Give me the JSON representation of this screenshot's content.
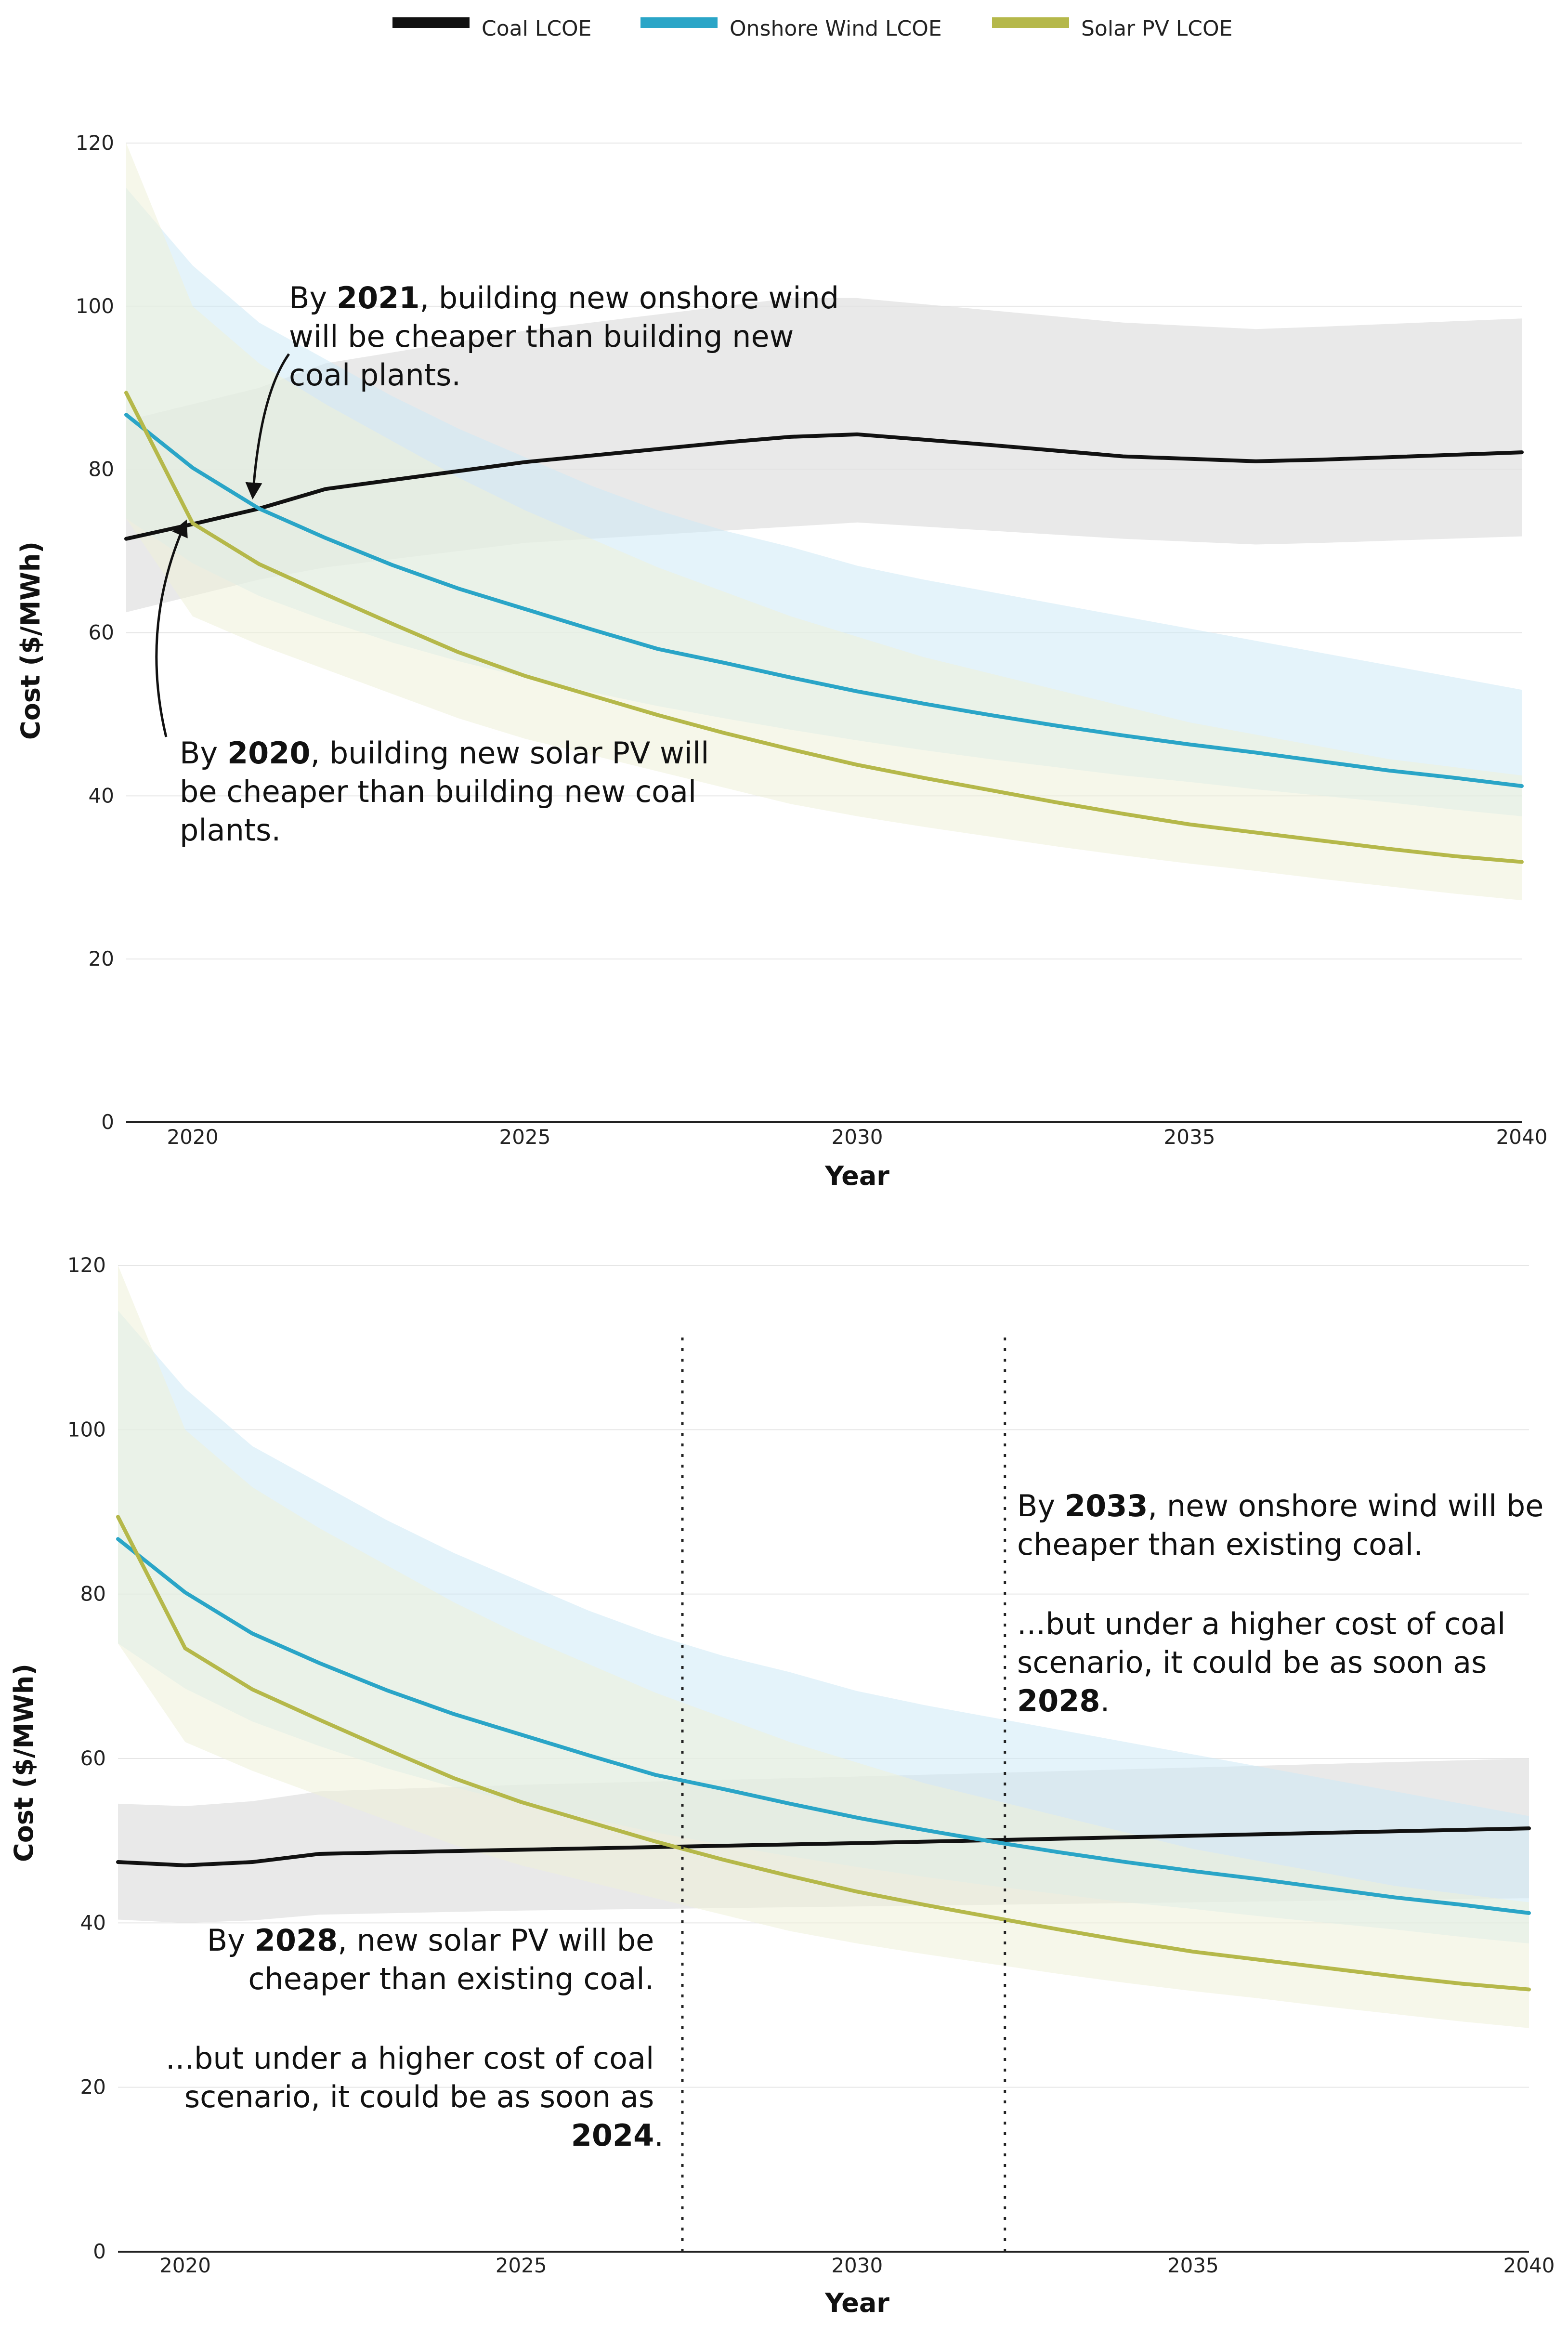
{
  "legend": {
    "coal": {
      "label": "Coal LCOE",
      "color": "#111111",
      "band_color": "#e2e2e2"
    },
    "wind": {
      "label": "Onshore Wind LCOE",
      "color": "#2aa5c7",
      "band_color": "#cde9f5"
    },
    "solar": {
      "label": "Solar PV LCOE",
      "color": "#b5b84a",
      "band_color": "#eff1d8"
    }
  },
  "chart_data": [
    {
      "type": "line",
      "title": "",
      "xlabel": "Year",
      "ylabel": "Cost ($/MWh)",
      "xlim": [
        2019,
        2040
      ],
      "ylim": [
        0,
        120
      ],
      "xticks": [
        2020,
        2025,
        2030,
        2035,
        2040
      ],
      "yticks": [
        0,
        20,
        40,
        60,
        80,
        100,
        120
      ],
      "grid": true,
      "legend_position": "top-center",
      "series": [
        {
          "name": "Coal LCOE",
          "key": "coal",
          "x": [
            2019,
            2020,
            2021,
            2022,
            2025,
            2028,
            2029,
            2030,
            2032,
            2034,
            2036,
            2037,
            2040
          ],
          "values": [
            71.5,
            73.3,
            75.2,
            77.6,
            80.9,
            83.3,
            84.0,
            84.3,
            83.0,
            81.6,
            81.0,
            81.2,
            82.1
          ],
          "upper": [
            86.0,
            88.0,
            90.0,
            93.0,
            97.0,
            100.0,
            101.0,
            101.0,
            99.5,
            98.0,
            97.2,
            97.5,
            98.5
          ],
          "lower": [
            62.5,
            64.5,
            66.5,
            68.0,
            71.0,
            72.5,
            73.0,
            73.5,
            72.5,
            71.5,
            70.8,
            71.0,
            71.8
          ]
        },
        {
          "name": "Onshore Wind LCOE",
          "key": "wind",
          "x": [
            2019,
            2020,
            2021,
            2022,
            2023,
            2024,
            2025,
            2026,
            2027,
            2028,
            2029,
            2030,
            2031,
            2032,
            2033,
            2034,
            2035,
            2036,
            2037,
            2038,
            2039,
            2040
          ],
          "values": [
            86.7,
            80.2,
            75.2,
            71.6,
            68.3,
            65.4,
            62.9,
            60.4,
            58.0,
            56.3,
            54.5,
            52.8,
            51.3,
            49.9,
            48.6,
            47.4,
            46.3,
            45.3,
            44.2,
            43.1,
            42.2,
            41.2
          ],
          "upper": [
            114.5,
            105.0,
            98.0,
            93.5,
            89.0,
            85.0,
            81.5,
            78.0,
            75.0,
            72.5,
            70.5,
            68.2,
            66.5,
            65.0,
            63.5,
            62.0,
            60.5,
            59.0,
            57.5,
            56.0,
            54.5,
            53.0
          ],
          "lower": [
            74.0,
            68.5,
            64.5,
            61.5,
            58.8,
            56.5,
            54.5,
            52.7,
            51.0,
            49.5,
            48.1,
            46.8,
            45.6,
            44.5,
            43.5,
            42.5,
            41.7,
            40.8,
            40.0,
            39.2,
            38.3,
            37.5
          ]
        },
        {
          "name": "Solar PV LCOE",
          "key": "solar",
          "x": [
            2019,
            2020,
            2021,
            2022,
            2023,
            2024,
            2025,
            2026,
            2027,
            2028,
            2029,
            2030,
            2031,
            2032,
            2033,
            2034,
            2035,
            2036,
            2037,
            2038,
            2039,
            2040
          ],
          "values": [
            89.4,
            73.4,
            68.4,
            64.7,
            61.1,
            57.6,
            54.7,
            52.3,
            49.9,
            47.7,
            45.7,
            43.8,
            42.2,
            40.7,
            39.2,
            37.8,
            36.5,
            35.5,
            34.5,
            33.5,
            32.6,
            31.9
          ],
          "upper": [
            120.0,
            100.0,
            93.0,
            88.0,
            83.5,
            79.0,
            75.0,
            71.5,
            68.0,
            65.0,
            62.0,
            59.5,
            57.0,
            55.0,
            53.0,
            51.0,
            49.0,
            47.5,
            46.0,
            44.5,
            43.5,
            42.5
          ],
          "lower": [
            74.0,
            62.0,
            58.5,
            55.5,
            52.5,
            49.5,
            47.0,
            45.0,
            43.0,
            41.0,
            39.0,
            37.5,
            36.2,
            35.0,
            33.8,
            32.7,
            31.7,
            30.8,
            29.8,
            28.9,
            28.0,
            27.2
          ]
        }
      ],
      "annotations": [
        {
          "prefix": "By ",
          "year": "2021",
          "line1_rest": ", building new onshore wind",
          "line2": "will be cheaper than building new",
          "line3": "coal plants."
        },
        {
          "prefix": "By ",
          "year": "2020",
          "line1_rest": ", building new solar PV will",
          "line2": "be cheaper than building new coal",
          "line3": "plants."
        }
      ]
    },
    {
      "type": "line",
      "title": "",
      "xlabel": "Year",
      "ylabel": "Cost ($/MWh)",
      "xlim": [
        2019,
        2040
      ],
      "ylim": [
        0,
        120
      ],
      "xticks": [
        2020,
        2025,
        2030,
        2035,
        2040
      ],
      "yticks": [
        0,
        20,
        40,
        60,
        80,
        100,
        120
      ],
      "grid": true,
      "vlines": [
        2027.4,
        2032.2
      ],
      "series": [
        {
          "name": "Coal LCOE",
          "key": "coal",
          "x": [
            2019,
            2020,
            2021,
            2022,
            2025,
            2030,
            2035,
            2040
          ],
          "values": [
            47.4,
            47.0,
            47.4,
            48.4,
            48.9,
            49.7,
            50.6,
            51.5
          ],
          "upper": [
            54.5,
            54.2,
            54.8,
            56.0,
            56.8,
            57.8,
            58.9,
            60.0
          ],
          "lower": [
            40.4,
            40.0,
            40.3,
            41.0,
            41.5,
            42.0,
            42.5,
            43.0
          ]
        },
        {
          "name": "Onshore Wind LCOE",
          "key": "wind",
          "x": [
            2019,
            2020,
            2021,
            2022,
            2023,
            2024,
            2025,
            2026,
            2027,
            2028,
            2029,
            2030,
            2031,
            2032,
            2033,
            2034,
            2035,
            2036,
            2037,
            2038,
            2039,
            2040
          ],
          "values": [
            86.7,
            80.2,
            75.2,
            71.6,
            68.3,
            65.4,
            62.9,
            60.4,
            58.0,
            56.3,
            54.5,
            52.8,
            51.3,
            49.9,
            48.6,
            47.4,
            46.3,
            45.3,
            44.2,
            43.1,
            42.2,
            41.2
          ],
          "upper": [
            114.5,
            105.0,
            98.0,
            93.5,
            89.0,
            85.0,
            81.5,
            78.0,
            75.0,
            72.5,
            70.5,
            68.2,
            66.5,
            65.0,
            63.5,
            62.0,
            60.5,
            59.0,
            57.5,
            56.0,
            54.5,
            53.0
          ],
          "lower": [
            74.0,
            68.5,
            64.5,
            61.5,
            58.8,
            56.5,
            54.5,
            52.7,
            51.0,
            49.5,
            48.1,
            46.8,
            45.6,
            44.5,
            43.5,
            42.5,
            41.7,
            40.8,
            40.0,
            39.2,
            38.3,
            37.5
          ]
        },
        {
          "name": "Solar PV LCOE",
          "key": "solar",
          "x": [
            2019,
            2020,
            2021,
            2022,
            2023,
            2024,
            2025,
            2026,
            2027,
            2028,
            2029,
            2030,
            2031,
            2032,
            2033,
            2034,
            2035,
            2036,
            2037,
            2038,
            2039,
            2040
          ],
          "values": [
            89.4,
            73.4,
            68.4,
            64.7,
            61.1,
            57.6,
            54.7,
            52.3,
            49.9,
            47.7,
            45.7,
            43.8,
            42.2,
            40.7,
            39.2,
            37.8,
            36.5,
            35.5,
            34.5,
            33.5,
            32.6,
            31.9
          ],
          "upper": [
            120.0,
            100.0,
            93.0,
            88.0,
            83.5,
            79.0,
            75.0,
            71.5,
            68.0,
            65.0,
            62.0,
            59.5,
            57.0,
            55.0,
            53.0,
            51.0,
            49.0,
            47.5,
            46.0,
            44.5,
            43.5,
            42.5
          ],
          "lower": [
            74.0,
            62.0,
            58.5,
            55.5,
            52.5,
            49.5,
            47.0,
            45.0,
            43.0,
            41.0,
            39.0,
            37.5,
            36.2,
            35.0,
            33.8,
            32.7,
            31.7,
            30.8,
            29.8,
            28.9,
            28.0,
            27.2
          ]
        }
      ],
      "annotations": [
        {
          "prefix": "By ",
          "year": "2033",
          "line1_rest": ", new onshore wind will be",
          "line2": "cheaper than existing coal.",
          "line3": "...but under a higher cost of coal",
          "line4": "scenario, it could be as soon as",
          "year2": "2028",
          "line5_rest": "."
        },
        {
          "prefix": "By ",
          "year": "2028",
          "line1_rest": ", new solar PV will be",
          "line2": "cheaper than existing coal.",
          "line3": "...but under a higher cost of coal",
          "line4": "scenario, it could be as soon as",
          "year2": "2024",
          "line5_rest": "."
        }
      ]
    }
  ]
}
